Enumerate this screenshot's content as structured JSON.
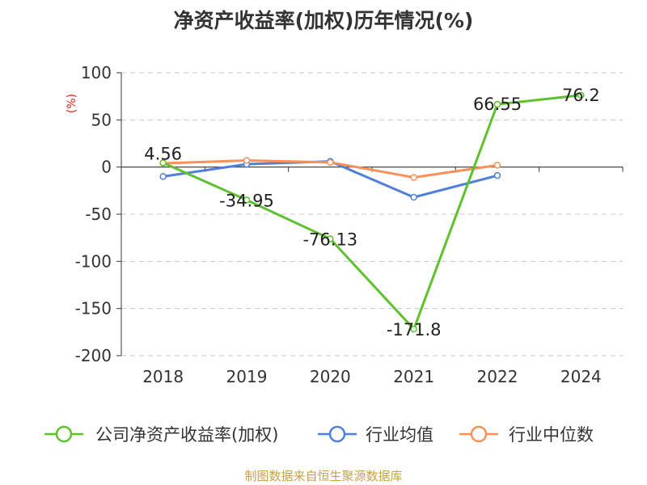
{
  "chart_data": {
    "type": "line",
    "title": "净资产收益率(加权)历年情况(%)",
    "ylabel": "(%)",
    "categories": [
      "2018",
      "2019",
      "2020",
      "2021",
      "2022",
      "2024"
    ],
    "ylim": [
      -200,
      100
    ],
    "yticks": [
      100,
      50,
      0,
      -50,
      -100,
      -150,
      -200
    ],
    "grid": true,
    "legend_position": "bottom",
    "series": [
      {
        "name": "公司净资产收益率(加权)",
        "color": "#5ec22c",
        "values": [
          4.56,
          -34.95,
          -76.13,
          -171.8,
          66.55,
          76.2
        ],
        "labels": [
          "4.56",
          "-34.95",
          "-76.13",
          "-171.8",
          "66.55",
          "76.2"
        ]
      },
      {
        "name": "行业均值",
        "color": "#4f7fdb",
        "values": [
          -10,
          3,
          6,
          -32,
          -9,
          null
        ]
      },
      {
        "name": "行业中位数",
        "color": "#f79157",
        "values": [
          4,
          7,
          5,
          -11,
          2,
          null
        ]
      }
    ]
  },
  "source": "制图数据来自恒生聚源数据库"
}
